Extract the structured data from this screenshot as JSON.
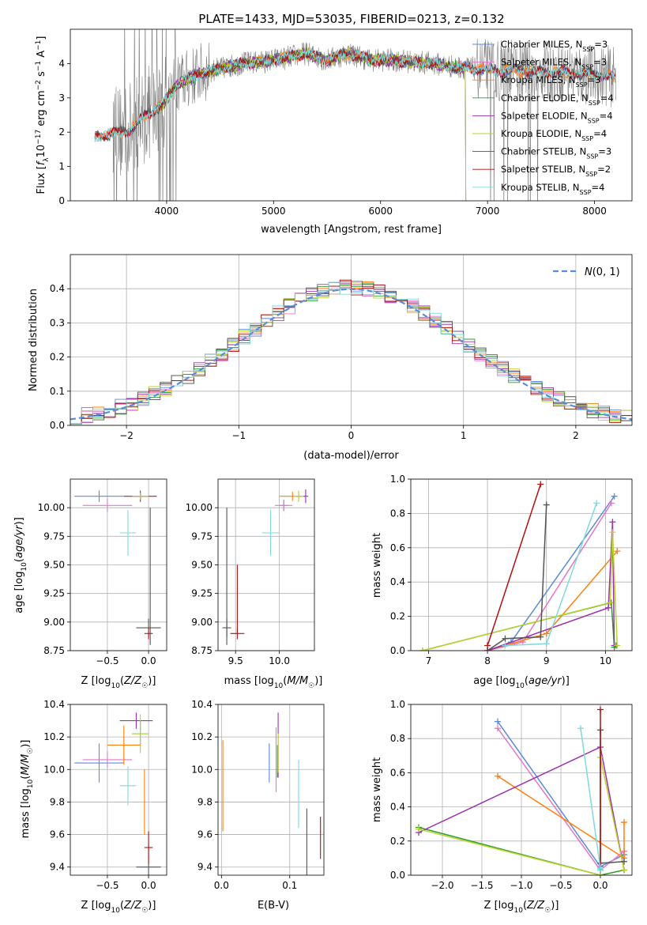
{
  "title": "PLATE=1433, MJD=53035, FIBERID=0213, z=0.132",
  "colors": {
    "Chabrier MILES": "#5b8bd9",
    "Salpeter MILES": "#e377c2",
    "Kroupa MILES": "#ff7f0e",
    "Chabrier ELODIE": "#2ca02c",
    "Salpeter ELODIE": "#9b30b0",
    "Kroupa ELODIE": "#bcd22e",
    "Chabrier STELIB": "#555555",
    "Salpeter STELIB": "#b01010",
    "Kroupa STELIB": "#7fd9dc",
    "observed": "#808080",
    "gaussian": "#5b8bd9"
  },
  "chart_data": [
    {
      "id": "spectrum",
      "type": "line",
      "xlabel": "wavelength [Angstrom, rest frame]",
      "ylabel": "Flux [f_λ10^-17 erg cm^-2 s^-1 A^-1]",
      "xlim": [
        3100,
        8350
      ],
      "ylim": [
        0,
        5
      ],
      "xticks": [
        4000,
        5000,
        6000,
        7000,
        8000
      ],
      "yticks": [
        0,
        1,
        2,
        3,
        4
      ],
      "legend_position": "top-right",
      "legend": [
        {
          "label": "Chabrier MILES, N",
          "sub": "SSP",
          "tail": "=3",
          "color": "Chabrier MILES"
        },
        {
          "label": "Salpeter MILES, N",
          "sub": "SSP",
          "tail": "=3",
          "color": "Salpeter MILES"
        },
        {
          "label": "Kroupa MILES, N",
          "sub": "SSP",
          "tail": "=3",
          "color": "Kroupa MILES"
        },
        {
          "label": "Chabrier ELODIE, N",
          "sub": "SSP",
          "tail": "=4",
          "color": "Chabrier ELODIE"
        },
        {
          "label": "Salpeter ELODIE, N",
          "sub": "SSP",
          "tail": "=4",
          "color": "Salpeter ELODIE"
        },
        {
          "label": "Kroupa ELODIE, N",
          "sub": "SSP",
          "tail": "=4",
          "color": "Kroupa ELODIE"
        },
        {
          "label": "Chabrier STELIB, N",
          "sub": "SSP",
          "tail": "=3",
          "color": "Chabrier STELIB"
        },
        {
          "label": "Salpeter STELIB, N",
          "sub": "SSP",
          "tail": "=2",
          "color": "Salpeter STELIB"
        },
        {
          "label": "Kroupa STELIB, N",
          "sub": "SSP",
          "tail": "=4",
          "color": "Kroupa STELIB"
        }
      ],
      "continuum": {
        "x": [
          3330,
          3500,
          3650,
          3800,
          3950,
          4100,
          4300,
          4500,
          4700,
          4900,
          5100,
          5300,
          5500,
          5700,
          5900,
          6100,
          6300,
          6500,
          6700,
          6900,
          7100,
          7300,
          7500,
          7700,
          7900,
          8100,
          8200
        ],
        "y": [
          1.9,
          1.95,
          2.05,
          2.5,
          2.75,
          3.4,
          3.7,
          3.85,
          4.0,
          4.05,
          4.15,
          4.3,
          4.1,
          4.3,
          4.1,
          4.1,
          4.05,
          4.0,
          3.9,
          3.85,
          3.8,
          3.8,
          3.75,
          3.75,
          3.7,
          3.65,
          3.6
        ]
      },
      "observed_range": [
        3500,
        8200
      ]
    },
    {
      "id": "residuals",
      "type": "bar",
      "xlabel": "(data-model)/error",
      "ylabel": "Normed distribution",
      "xlim": [
        -2.5,
        2.5
      ],
      "ylim": [
        0,
        0.5
      ],
      "xticks": [
        -2,
        -1,
        0,
        1,
        2
      ],
      "yticks": [
        0.0,
        0.1,
        0.2,
        0.3,
        0.4
      ],
      "legend_position": "top-right",
      "legend": "N(0,1)",
      "bin_width": 0.1,
      "gaussian": {
        "mean": 0,
        "sigma": 1
      }
    },
    {
      "id": "age-vs-Z",
      "type": "scatter",
      "xlabel": "Z [log10(Z/Z☉)]",
      "ylabel": "age [log10(age/yr)]",
      "xlim": [
        -0.95,
        0.22
      ],
      "ylim": [
        8.75,
        10.25
      ],
      "xticks": [
        -0.5,
        0.0
      ],
      "yticks": [
        8.75,
        9.0,
        9.25,
        9.5,
        9.75,
        10.0
      ],
      "points": [
        {
          "s": "Chabrier MILES",
          "x": -0.6,
          "y": 10.1,
          "xe": 0.3,
          "ye": 0.05
        },
        {
          "s": "Salpeter MILES",
          "x": -0.5,
          "y": 10.02,
          "xe": 0.3,
          "ye": 0.06
        },
        {
          "s": "Kroupa MILES",
          "x": -0.1,
          "y": 10.1,
          "xe": 0.2,
          "ye": 0.04
        },
        {
          "s": "Chabrier ELODIE",
          "x": -0.1,
          "y": 10.1,
          "xe": 0.1,
          "ye": 0.03
        },
        {
          "s": "Salpeter ELODIE",
          "x": -0.1,
          "y": 10.1,
          "xe": 0.2,
          "ye": 0.05
        },
        {
          "s": "Kroupa ELODIE",
          "x": -0.1,
          "y": 10.1,
          "xe": 0.1,
          "ye": 0.03
        },
        {
          "s": "Chabrier STELIB",
          "x": 0.0,
          "y": 8.95,
          "xe": 0.15,
          "ye": 0.08
        },
        {
          "s": "Salpeter STELIB",
          "x": 0.0,
          "y": 8.9,
          "xe": 0.05,
          "ye": 0.05
        },
        {
          "s": "Kroupa STELIB",
          "x": -0.25,
          "y": 9.78,
          "xe": 0.1,
          "ye": 0.2
        },
        {
          "s": "Chabrier STELIB",
          "x": 0.02,
          "y": 9.4,
          "xe": 0.0,
          "ye": 0.6
        }
      ]
    },
    {
      "id": "age-vs-mass",
      "type": "scatter",
      "xlabel": "mass [log10(M/M☉)]",
      "ylabel": "",
      "xlim": [
        9.3,
        10.4
      ],
      "ylim": [
        8.75,
        10.25
      ],
      "xticks": [
        9.5,
        10.0
      ],
      "yticks": [
        8.75,
        9.0,
        9.25,
        9.5,
        9.75,
        10.0
      ],
      "points": [
        {
          "s": "Chabrier MILES",
          "x": 10.05,
          "y": 10.02,
          "xe": 0.05,
          "ye": 0.05
        },
        {
          "s": "Salpeter MILES",
          "x": 10.05,
          "y": 10.02,
          "xe": 0.1,
          "ye": 0.04
        },
        {
          "s": "Kroupa MILES",
          "x": 10.15,
          "y": 10.1,
          "xe": 0.15,
          "ye": 0.04
        },
        {
          "s": "Chabrier ELODIE",
          "x": 10.22,
          "y": 10.1,
          "xe": 0.03,
          "ye": 0.04
        },
        {
          "s": "Salpeter ELODIE",
          "x": 10.3,
          "y": 10.1,
          "xe": 0.03,
          "ye": 0.06
        },
        {
          "s": "Kroupa ELODIE",
          "x": 10.22,
          "y": 10.1,
          "xe": 0.06,
          "ye": 0.05
        },
        {
          "s": "Chabrier STELIB",
          "x": 9.4,
          "y": 8.95,
          "xe": 0.05,
          "ye": 0.08
        },
        {
          "s": "Salpeter STELIB",
          "x": 9.52,
          "y": 8.9,
          "xe": 0.08,
          "ye": 0.05
        },
        {
          "s": "Kroupa STELIB",
          "x": 9.9,
          "y": 9.78,
          "xe": 0.1,
          "ye": 0.2
        },
        {
          "s": "Chabrier STELIB",
          "x": 9.4,
          "y": 9.4,
          "xe": 0.0,
          "ye": 0.6
        },
        {
          "s": "Salpeter STELIB",
          "x": 9.52,
          "y": 9.2,
          "xe": 0.0,
          "ye": 0.3
        }
      ]
    },
    {
      "id": "weight-vs-age",
      "type": "line",
      "xlabel": "age [log10(age/yr)]",
      "ylabel": "mass weight",
      "xlim": [
        6.7,
        10.45
      ],
      "ylim": [
        0,
        1
      ],
      "xticks": [
        7,
        8,
        9,
        10
      ],
      "yticks": [
        0.0,
        0.2,
        0.4,
        0.6,
        0.8,
        1.0
      ],
      "series": [
        {
          "s": "Chabrier MILES",
          "x": [
            8.0,
            8.4,
            10.15
          ],
          "y": [
            0.0,
            0.05,
            0.9
          ]
        },
        {
          "s": "Salpeter MILES",
          "x": [
            8.0,
            8.6,
            10.1
          ],
          "y": [
            0.0,
            0.05,
            0.86
          ]
        },
        {
          "s": "Kroupa MILES",
          "x": [
            8.0,
            9.0,
            10.2
          ],
          "y": [
            0.0,
            0.1,
            0.58
          ]
        },
        {
          "s": "Chabrier ELODIE",
          "x": [
            6.9,
            10.1,
            10.15,
            10.18
          ],
          "y": [
            0.0,
            0.28,
            0.02,
            0.03
          ]
        },
        {
          "s": "Salpeter ELODIE",
          "x": [
            8.0,
            10.05,
            10.12,
            10.15
          ],
          "y": [
            0.0,
            0.25,
            0.75,
            0.03
          ]
        },
        {
          "s": "Kroupa ELODIE",
          "x": [
            6.9,
            10.08,
            10.12,
            10.2
          ],
          "y": [
            0.0,
            0.28,
            0.69,
            0.03
          ]
        },
        {
          "s": "Chabrier STELIB",
          "x": [
            8.0,
            8.3,
            8.9,
            9.0
          ],
          "y": [
            0.0,
            0.07,
            0.08,
            0.85
          ]
        },
        {
          "s": "Salpeter STELIB",
          "x": [
            8.0,
            8.9
          ],
          "y": [
            0.03,
            0.97
          ]
        },
        {
          "s": "Kroupa STELIB",
          "x": [
            8.3,
            9.0,
            9.85
          ],
          "y": [
            0.03,
            0.04,
            0.86
          ]
        }
      ]
    },
    {
      "id": "mass-vs-Z",
      "type": "scatter",
      "xlabel": "Z [log10(Z/Z☉)]",
      "ylabel": "mass [log10(M/M☉)]",
      "xlim": [
        -0.95,
        0.22
      ],
      "ylim": [
        9.35,
        10.4
      ],
      "xticks": [
        -0.5,
        0.0
      ],
      "yticks": [
        9.4,
        9.6,
        9.8,
        10.0,
        10.2,
        10.4
      ],
      "points": [
        {
          "s": "Chabrier MILES",
          "x": -0.6,
          "y": 10.04,
          "xe": 0.3,
          "ye": 0.12
        },
        {
          "s": "Salpeter MILES",
          "x": -0.5,
          "y": 10.06,
          "xe": 0.3,
          "ye": 0.05
        },
        {
          "s": "Kroupa MILES",
          "x": -0.3,
          "y": 10.15,
          "xe": 0.2,
          "ye": 0.12
        },
        {
          "s": "Chabrier ELODIE",
          "x": -0.1,
          "y": 10.22,
          "xe": 0.1,
          "ye": 0.08
        },
        {
          "s": "Salpeter ELODIE",
          "x": -0.15,
          "y": 10.3,
          "xe": 0.2,
          "ye": 0.05
        },
        {
          "s": "Kroupa ELODIE",
          "x": -0.1,
          "y": 10.22,
          "xe": 0.1,
          "ye": 0.12
        },
        {
          "s": "Chabrier STELIB",
          "x": 0.0,
          "y": 9.4,
          "xe": 0.15,
          "ye": 0.13
        },
        {
          "s": "Salpeter STELIB",
          "x": 0.0,
          "y": 9.52,
          "xe": 0.05,
          "ye": 0.1
        },
        {
          "s": "Kroupa STELIB",
          "x": -0.25,
          "y": 9.9,
          "xe": 0.1,
          "ye": 0.12
        },
        {
          "s": "Kroupa MILES",
          "x": -0.05,
          "y": 9.8,
          "xe": 0.0,
          "ye": 0.2
        }
      ]
    },
    {
      "id": "mass-vs-EBV",
      "type": "scatter",
      "xlabel": "E(B-V)",
      "ylabel": "",
      "xlim": [
        -0.005,
        0.15
      ],
      "ylim": [
        9.35,
        10.4
      ],
      "xticks": [
        0.0,
        0.1
      ],
      "yticks": [
        9.4,
        9.6,
        9.8,
        10.0,
        10.2,
        10.4
      ],
      "points": [
        {
          "s": "Chabrier MILES",
          "x": 0.07,
          "y": 10.04,
          "xe": 0.0,
          "ye": 0.12
        },
        {
          "s": "Salpeter MILES",
          "x": 0.08,
          "y": 10.06,
          "xe": 0.0,
          "ye": 0.2
        },
        {
          "s": "Kroupa MILES",
          "x": 0.002,
          "y": 9.9,
          "xe": 0.0,
          "ye": 0.28
        },
        {
          "s": "Chabrier ELODIE",
          "x": 0.082,
          "y": 10.05,
          "xe": 0.0,
          "ye": 0.1
        },
        {
          "s": "Salpeter ELODIE",
          "x": 0.083,
          "y": 10.15,
          "xe": 0.0,
          "ye": 0.2
        },
        {
          "s": "Kroupa ELODIE",
          "x": 0.083,
          "y": 10.1,
          "xe": 0.0,
          "ye": 0.12
        },
        {
          "s": "Chabrier STELIB",
          "x": 0.125,
          "y": 9.55,
          "xe": 0.0,
          "ye": 0.21
        },
        {
          "s": "Salpeter STELIB",
          "x": 0.145,
          "y": 9.58,
          "xe": 0.0,
          "ye": 0.13
        },
        {
          "s": "Kroupa STELIB",
          "x": 0.113,
          "y": 9.85,
          "xe": 0.0,
          "ye": 0.21
        }
      ]
    },
    {
      "id": "weight-vs-Z",
      "type": "line",
      "xlabel": "Z [log10(Z/Z☉)]",
      "ylabel": "mass weight",
      "xlim": [
        -2.4,
        0.4
      ],
      "ylim": [
        0,
        1
      ],
      "xticks": [
        -2.0,
        -1.5,
        -1.0,
        -0.5,
        0.0
      ],
      "yticks": [
        0.0,
        0.2,
        0.4,
        0.6,
        0.8,
        1.0
      ],
      "series": [
        {
          "s": "Chabrier MILES",
          "x": [
            -1.3,
            0.0,
            0.3
          ],
          "y": [
            0.9,
            0.05,
            0.12
          ]
        },
        {
          "s": "Salpeter MILES",
          "x": [
            -1.3,
            0.0,
            0.3
          ],
          "y": [
            0.86,
            0.03,
            0.14
          ]
        },
        {
          "s": "Kroupa MILES",
          "x": [
            -1.3,
            0.3,
            0.3
          ],
          "y": [
            0.58,
            0.1,
            0.31
          ]
        },
        {
          "s": "Chabrier ELODIE",
          "x": [
            -2.3,
            0.0,
            0.3
          ],
          "y": [
            0.28,
            0.0,
            0.03
          ]
        },
        {
          "s": "Salpeter ELODIE",
          "x": [
            -2.3,
            0.0,
            0.3
          ],
          "y": [
            0.25,
            0.75,
            0.03
          ]
        },
        {
          "s": "Kroupa ELODIE",
          "x": [
            -2.3,
            0.0,
            0.0,
            0.3
          ],
          "y": [
            0.27,
            0.0,
            0.69,
            0.03
          ]
        },
        {
          "s": "Chabrier STELIB",
          "x": [
            0.0,
            0.0,
            0.3
          ],
          "y": [
            0.85,
            0.07,
            0.08
          ]
        },
        {
          "s": "Salpeter STELIB",
          "x": [
            0.0,
            0.0
          ],
          "y": [
            0.97,
            0.03
          ]
        },
        {
          "s": "Kroupa STELIB",
          "x": [
            -0.25,
            0.0,
            0.0
          ],
          "y": [
            0.86,
            0.04,
            0.03
          ]
        }
      ]
    }
  ]
}
